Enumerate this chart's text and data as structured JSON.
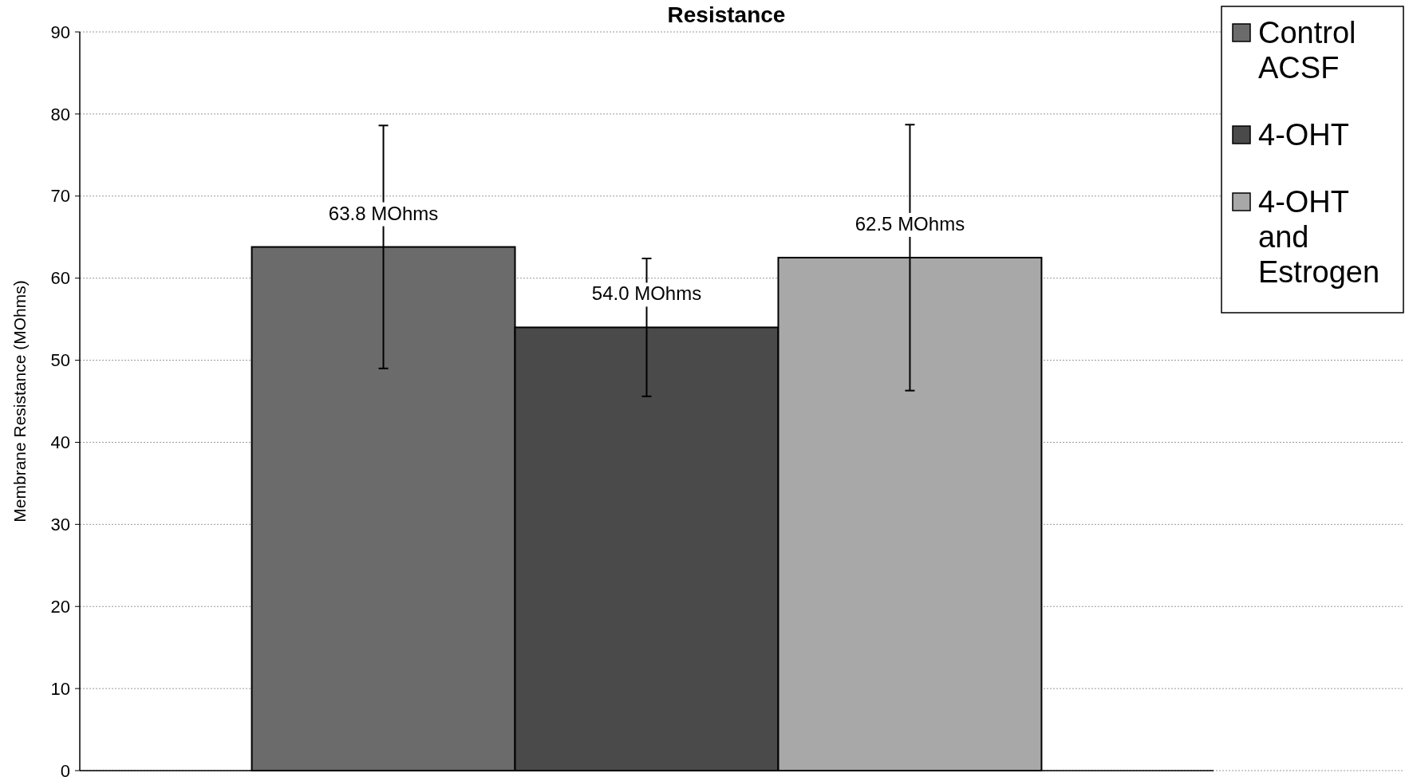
{
  "chart_data": {
    "type": "bar",
    "title": "Resistance",
    "ylabel": "Membrane Resistance (MOhms)",
    "categories": [
      null
    ],
    "series": [
      {
        "name": "Control ACSF",
        "color": "#6b6b6b",
        "values": [
          63.8
        ],
        "errors": [
          14.8
        ],
        "value_labels": [
          "63.8 MOhms"
        ]
      },
      {
        "name": "4-OHT",
        "color": "#4a4a4a",
        "values": [
          54.0
        ],
        "errors": [
          8.4
        ],
        "value_labels": [
          "54.0 MOhms"
        ]
      },
      {
        "name": "4-OHT and Estrogen",
        "color": "#a8a8a8",
        "values": [
          62.5
        ],
        "errors": [
          16.2
        ],
        "value_labels": [
          "62.5 MOhms"
        ]
      }
    ],
    "ylim": [
      0,
      90
    ],
    "yticks": [
      0,
      10,
      20,
      30,
      40,
      50,
      60,
      70,
      80,
      90
    ],
    "grid": "y",
    "legend": "top right"
  }
}
